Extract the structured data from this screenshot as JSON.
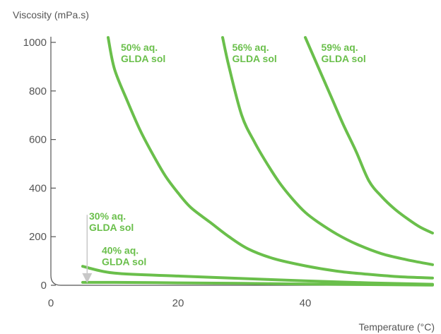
{
  "chart_data": {
    "type": "line",
    "title": "",
    "ylabel": "Viscosity (mPa.s)",
    "xlabel": "Temperature (°C)",
    "xlim": [
      0,
      60
    ],
    "ylim": [
      0,
      1000
    ],
    "x_ticks": [
      0,
      20,
      40
    ],
    "y_ticks": [
      0,
      200,
      400,
      600,
      800,
      1000
    ],
    "grid": false,
    "line_color": "#6abf4b",
    "arrow_color": "#c8c8c8",
    "series": [
      {
        "values": [
          [
            5,
            12
          ],
          [
            10,
            12
          ],
          [
            20,
            10
          ],
          [
            30,
            8
          ],
          [
            40,
            5
          ],
          [
            50,
            3
          ],
          [
            60,
            1
          ]
        ]
      },
      {
        "values": [
          [
            5,
            78
          ],
          [
            10,
            50
          ],
          [
            20,
            38
          ],
          [
            30,
            28
          ],
          [
            40,
            18
          ],
          [
            50,
            10
          ],
          [
            60,
            4
          ]
        ]
      },
      {
        "values": [
          [
            9,
            1020
          ],
          [
            10,
            890
          ],
          [
            12,
            760
          ],
          [
            14,
            640
          ],
          [
            16,
            540
          ],
          [
            18,
            450
          ],
          [
            20,
            380
          ],
          [
            22,
            320
          ],
          [
            25,
            260
          ],
          [
            28,
            200
          ],
          [
            31,
            150
          ],
          [
            35,
            110
          ],
          [
            40,
            80
          ],
          [
            45,
            58
          ],
          [
            50,
            45
          ],
          [
            55,
            35
          ],
          [
            60,
            30
          ]
        ]
      },
      {
        "values": [
          [
            27,
            1020
          ],
          [
            28,
            900
          ],
          [
            30,
            700
          ],
          [
            32,
            590
          ],
          [
            34,
            500
          ],
          [
            36,
            420
          ],
          [
            38,
            355
          ],
          [
            40,
            300
          ],
          [
            42,
            260
          ],
          [
            45,
            210
          ],
          [
            48,
            170
          ],
          [
            52,
            130
          ],
          [
            56,
            105
          ],
          [
            60,
            85
          ]
        ]
      },
      {
        "values": [
          [
            40,
            1020
          ],
          [
            42,
            900
          ],
          [
            44,
            780
          ],
          [
            46,
            660
          ],
          [
            48,
            550
          ],
          [
            50,
            430
          ],
          [
            52,
            365
          ],
          [
            54,
            315
          ],
          [
            56,
            275
          ],
          [
            58,
            240
          ],
          [
            60,
            215
          ]
        ]
      }
    ],
    "annotations": [
      {
        "line1": "50% aq.",
        "line2": "GLDA sol",
        "x": 11,
        "y": 965
      },
      {
        "line1": "56% aq.",
        "line2": "GLDA sol",
        "x": 28.5,
        "y": 965
      },
      {
        "line1": "59% aq.",
        "line2": "GLDA sol",
        "x": 42.5,
        "y": 965
      },
      {
        "line1": "30% aq.",
        "line2": "GLDA sol",
        "x": 6,
        "y": 270,
        "arrow_from": [
          5.7,
          290
        ],
        "arrow_to": [
          5.7,
          15
        ]
      },
      {
        "line1": "40% aq.",
        "line2": "GLDA sol",
        "x": 8,
        "y": 130
      }
    ]
  }
}
